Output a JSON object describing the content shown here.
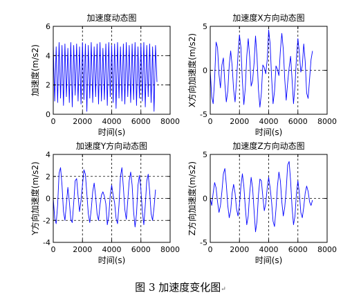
{
  "figure_caption": "图 3  加速度变化图",
  "chart_data": [
    {
      "type": "line",
      "title": "加速度动态图",
      "xlabel": "时间(s)",
      "ylabel": "加速度(m/s2)",
      "xlim": [
        0,
        8000
      ],
      "ylim": [
        0,
        6
      ],
      "x_ticks": [
        0,
        2000,
        4000,
        6000,
        8000
      ],
      "y_ticks": [
        0,
        2,
        4,
        6
      ],
      "grid": "dashed",
      "grid_x": [
        2000,
        4000,
        6000
      ],
      "grid_y": [
        2,
        4
      ],
      "series_color": "#0000ff",
      "series": [
        {
          "x_start": 0,
          "x_step": 100,
          "values": [
            4.8,
            0.9,
            4.6,
            0.8,
            4.9,
            1.1,
            4.7,
            0.6,
            4.8,
            1.2,
            4.5,
            0.8,
            4.9,
            0.5,
            4.7,
            1.3,
            4.8,
            0.9,
            4.6,
            0.7,
            4.9,
            1.0,
            4.8,
            0.2,
            4.7,
            1.1,
            4.9,
            0.8,
            4.6,
            1.2,
            4.8,
            0.7,
            4.9,
            0.9,
            4.5,
            1.0,
            4.8,
            0.6,
            4.9,
            1.2,
            4.7,
            0.8,
            4.8,
            0.4,
            4.9,
            1.1,
            4.6,
            0.9,
            4.8,
            0.7,
            4.9,
            1.2,
            4.7,
            0.8,
            4.8,
            1.0,
            4.9,
            0.6,
            4.6,
            1.1,
            4.8,
            0.9,
            4.9,
            0.5,
            4.7,
            1.2,
            4.8,
            0.8,
            4.6,
            0.2,
            4.7,
            2.2
          ]
        }
      ]
    },
    {
      "type": "line",
      "title": "加速度X方向动态图",
      "xlabel": "时间(s)",
      "ylabel": "X方向加速度(m/s2)",
      "xlim": [
        0,
        8000
      ],
      "ylim": [
        -5,
        5
      ],
      "x_ticks": [
        0,
        2000,
        4000,
        6000,
        8000
      ],
      "y_ticks": [
        -5,
        0,
        5
      ],
      "grid": "dashed",
      "grid_x": [
        2000,
        4000,
        6000
      ],
      "grid_y": [
        0
      ],
      "series_color": "#0000ff",
      "series": [
        {
          "x_start": 0,
          "x_step": 100,
          "values": [
            0.0,
            -3.0,
            -3.8,
            -1.0,
            3.2,
            2.6,
            -0.5,
            -2.0,
            0.6,
            1.4,
            -1.5,
            -3.6,
            -2.4,
            0.6,
            2.2,
            0.5,
            -2.2,
            -3.6,
            -1.2,
            1.8,
            4.0,
            2.6,
            -1.2,
            -3.9,
            -2.0,
            1.6,
            3.6,
            1.5,
            -1.8,
            -1.2,
            0.8,
            3.9,
            1.6,
            -2.2,
            -4.2,
            -2.6,
            0.6,
            0.3,
            -0.4,
            1.2,
            4.6,
            3.0,
            -0.8,
            -3.8,
            -2.4,
            0.5,
            0.1,
            -0.6,
            2.2,
            4.2,
            2.4,
            -1.0,
            -3.4,
            -1.4,
            0.3,
            1.6,
            -1.0,
            -3.8,
            -1.8,
            1.4,
            3.6,
            2.0,
            -0.2,
            0.5,
            3.0,
            1.0,
            -2.6,
            -3.2,
            -1.0,
            1.2,
            2.2
          ]
        }
      ]
    },
    {
      "type": "line",
      "title": "加速度Y方向动态图",
      "xlabel": "时间(s)",
      "ylabel": "Y方向加速度(m/s2)",
      "xlim": [
        0,
        8000
      ],
      "ylim": [
        -4,
        4
      ],
      "x_ticks": [
        0,
        2000,
        4000,
        6000,
        8000
      ],
      "y_ticks": [
        -4,
        -2,
        0,
        2,
        4
      ],
      "grid": "dashed",
      "grid_x": [
        2000,
        4000,
        6000
      ],
      "grid_y": [
        -2,
        0,
        2
      ],
      "series_color": "#0000ff",
      "series": [
        {
          "x_start": 0,
          "x_step": 100,
          "values": [
            0.0,
            -1.8,
            -2.3,
            -0.6,
            2.3,
            2.8,
            1.2,
            -1.2,
            -2.0,
            -0.5,
            1.0,
            -0.3,
            -1.9,
            -2.2,
            -0.4,
            1.6,
            1.8,
            0.2,
            -1.2,
            -0.2,
            1.2,
            2.6,
            2.2,
            0.4,
            -1.4,
            -2.2,
            -1.0,
            0.6,
            1.4,
            0.2,
            -1.4,
            -2.0,
            -0.6,
            0.3,
            0.6,
            0.2,
            -0.5,
            -2.4,
            -1.6,
            0.3,
            1.2,
            0.3,
            -0.4,
            -1.8,
            -2.3,
            -0.6,
            2.0,
            2.8,
            1.0,
            -1.0,
            -1.9,
            -0.2,
            1.6,
            2.4,
            1.2,
            -1.2,
            -2.6,
            -1.4,
            1.2,
            2.1,
            0.8,
            -1.2,
            -2.4,
            -0.6,
            1.6,
            2.2,
            0.6,
            -1.4,
            -2.0,
            -0.8,
            0.8
          ]
        }
      ]
    },
    {
      "type": "line",
      "title": "加速度Z方向动态图",
      "xlabel": "时间(s)",
      "ylabel": "Z方向加速度(m/s2)",
      "xlim": [
        0,
        8000
      ],
      "ylim": [
        -5,
        5
      ],
      "x_ticks": [
        0,
        2000,
        4000,
        6000,
        8000
      ],
      "y_ticks": [
        -5,
        0,
        5
      ],
      "grid": "dashed",
      "grid_x": [
        2000,
        4000,
        6000
      ],
      "grid_y": [
        0
      ],
      "series_color": "#0000ff",
      "series": [
        {
          "x_start": 0,
          "x_step": 100,
          "values": [
            0.0,
            -0.8,
            0.6,
            1.8,
            1.2,
            -0.4,
            -1.6,
            -0.8,
            0.8,
            2.8,
            3.4,
            1.6,
            -0.8,
            -2.2,
            -1.4,
            0.6,
            1.6,
            0.6,
            -1.2,
            -2.0,
            -0.8,
            1.4,
            2.8,
            1.4,
            -1.0,
            -3.0,
            -2.0,
            0.6,
            2.4,
            1.2,
            -1.4,
            -3.8,
            -2.6,
            0.4,
            2.2,
            2.0,
            0.2,
            -1.4,
            -0.6,
            1.2,
            2.4,
            1.2,
            -0.4,
            -2.6,
            -3.2,
            -1.2,
            1.4,
            3.0,
            2.0,
            -0.4,
            -2.0,
            -1.0,
            1.0,
            3.8,
            4.2,
            2.0,
            -1.0,
            -3.0,
            -2.0,
            0.6,
            2.0,
            0.6,
            -1.6,
            -2.2,
            -1.0,
            0.6,
            1.4,
            0.8,
            -0.4,
            -0.8,
            -0.2
          ]
        }
      ]
    }
  ]
}
